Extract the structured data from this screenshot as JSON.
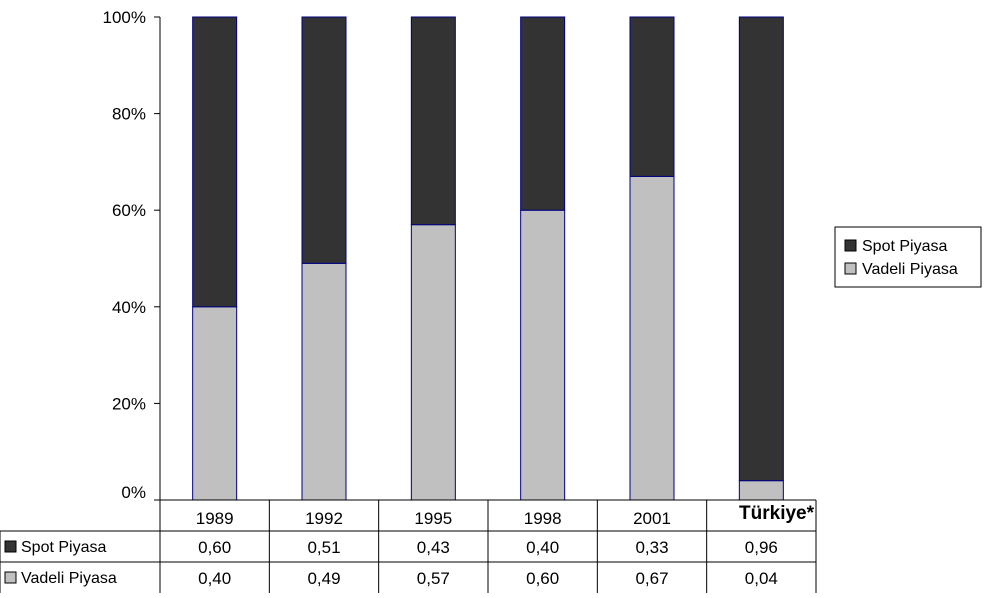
{
  "chart_data": {
    "type": "bar",
    "stacked": true,
    "percent_axis": true,
    "categories": [
      "1989",
      "1992",
      "1995",
      "1998",
      "2001",
      "Türkiye*"
    ],
    "series": [
      {
        "name": "Spot Piyasa",
        "values": [
          0.6,
          0.51,
          0.43,
          0.4,
          0.33,
          0.96
        ],
        "color": "#333333"
      },
      {
        "name": "Vadeli Piyasa",
        "values": [
          0.4,
          0.49,
          0.57,
          0.6,
          0.67,
          0.04
        ],
        "color": "#c0c0c0"
      }
    ],
    "table_values": {
      "Spot Piyasa": [
        "0,60",
        "0,51",
        "0,43",
        "0,40",
        "0,33",
        "0,96"
      ],
      "Vadeli Piyasa": [
        "0,40",
        "0,49",
        "0,57",
        "0,60",
        "0,67",
        "0,04"
      ]
    },
    "y_ticks": [
      "0%",
      "20%",
      "40%",
      "60%",
      "80%",
      "100%"
    ],
    "ylim": [
      0,
      1
    ],
    "legend": {
      "position": "right",
      "entries": [
        "Spot Piyasa",
        "Vadeli Piyasa"
      ]
    },
    "grid": false,
    "bar_outline_color": "#000080",
    "title": "",
    "xlabel": "",
    "ylabel": ""
  }
}
